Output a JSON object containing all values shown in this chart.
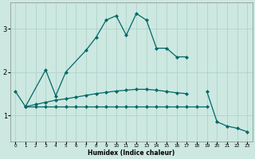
{
  "xlabel": "Humidex (Indice chaleur)",
  "background_color": "#cce8e0",
  "grid_color": "#aacfc8",
  "line_color": "#006868",
  "x_values": [
    0,
    1,
    2,
    3,
    4,
    5,
    6,
    7,
    8,
    9,
    10,
    11,
    12,
    13,
    14,
    15,
    16,
    17,
    18,
    19,
    20,
    21,
    22,
    23
  ],
  "line_peak": [
    1.55,
    1.2,
    null,
    2.05,
    1.45,
    2.0,
    null,
    2.5,
    2.8,
    3.2,
    3.3,
    2.85,
    3.35,
    3.2,
    2.55,
    2.55,
    2.35,
    2.35,
    null,
    null,
    null,
    null,
    null,
    null
  ],
  "line_flat": [
    null,
    1.2,
    1.2,
    1.2,
    1.2,
    1.2,
    1.2,
    1.2,
    1.2,
    1.2,
    1.2,
    1.2,
    1.2,
    1.2,
    1.2,
    1.2,
    1.2,
    1.2,
    1.2,
    1.2,
    null,
    null,
    null,
    null
  ],
  "line_rise": [
    null,
    1.2,
    1.25,
    1.3,
    1.35,
    1.38,
    1.42,
    1.46,
    1.5,
    1.53,
    1.56,
    1.58,
    1.6,
    1.6,
    1.58,
    1.55,
    1.52,
    1.5,
    null,
    null,
    null,
    null,
    null,
    null
  ],
  "line_fall": [
    null,
    null,
    null,
    null,
    null,
    null,
    null,
    null,
    null,
    null,
    null,
    null,
    null,
    null,
    null,
    null,
    null,
    null,
    null,
    1.55,
    0.85,
    0.75,
    0.7,
    0.62
  ],
  "ylim": [
    0.4,
    3.6
  ],
  "yticks": [
    1,
    2,
    3
  ],
  "xlim": [
    -0.5,
    23.5
  ]
}
